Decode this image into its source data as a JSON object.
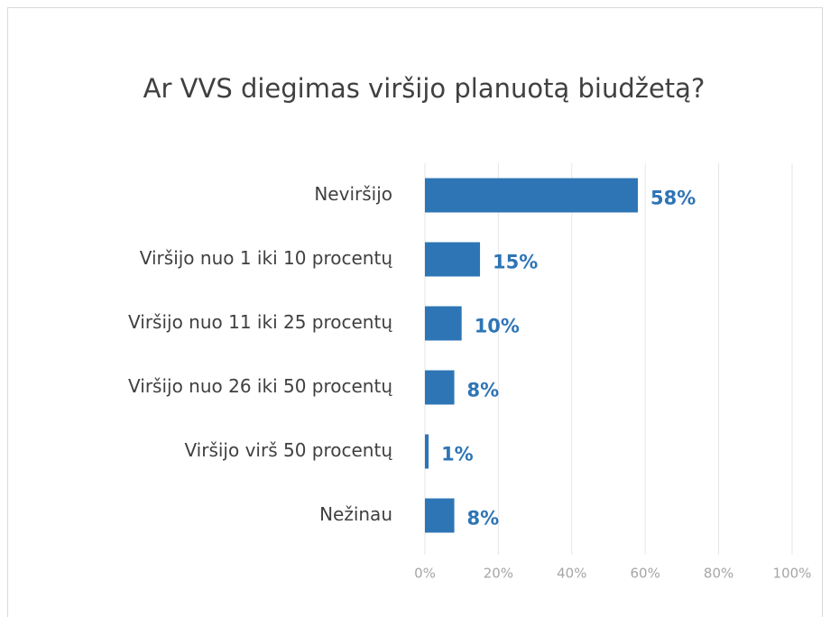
{
  "chart_data": {
    "type": "barh",
    "title": "Ar VVS diegimas viršijo planuotą biudžetą?",
    "categories": [
      "Neviršijo",
      "Viršijo nuo 1 iki 10 procentų",
      "Viršijo nuo 11 iki 25 procentų",
      "Viršijo nuo 26 iki 50 procentų",
      "Viršijo virš 50 procentų",
      "Nežinau"
    ],
    "values": [
      58,
      15,
      10,
      8,
      1,
      8
    ],
    "value_labels": [
      "58%",
      "15%",
      "10%",
      "8%",
      "1%",
      "8%"
    ],
    "color": "#2e75b6",
    "xlim": [
      0,
      100
    ],
    "xticks": [
      {
        "value": 0,
        "label": "0%"
      },
      {
        "value": 20,
        "label": "20%"
      },
      {
        "value": 40,
        "label": "40%"
      },
      {
        "value": 60,
        "label": "60%"
      },
      {
        "value": 80,
        "label": "80%"
      },
      {
        "value": 100,
        "label": "100%"
      }
    ],
    "grid": true
  }
}
